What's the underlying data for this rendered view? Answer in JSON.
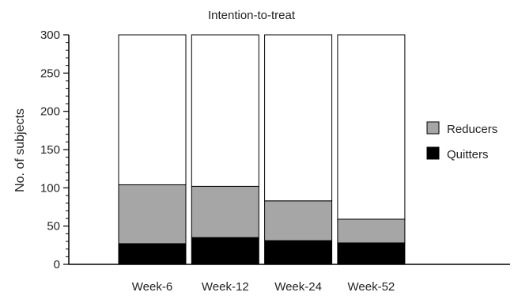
{
  "chart_data": {
    "type": "bar",
    "stacked": true,
    "title": "Intention-to-treat",
    "ylabel": "No. of subjects",
    "xlabel": "",
    "ylim": [
      0,
      300
    ],
    "yticks": [
      0,
      50,
      100,
      150,
      200,
      250,
      300
    ],
    "categories": [
      "Week-6",
      "Week-12",
      "Week-24",
      "Week-52"
    ],
    "total": 300,
    "series": [
      {
        "name": "Quitters",
        "values": [
          27,
          35,
          31,
          28
        ],
        "color": "#000000"
      },
      {
        "name": "Reducers",
        "values": [
          77,
          67,
          52,
          31
        ],
        "color": "#a6a6a6"
      }
    ],
    "remainder_color": "#ffffff",
    "legend": {
      "position": "right",
      "order": [
        "Reducers",
        "Quitters"
      ]
    },
    "grid": false
  }
}
